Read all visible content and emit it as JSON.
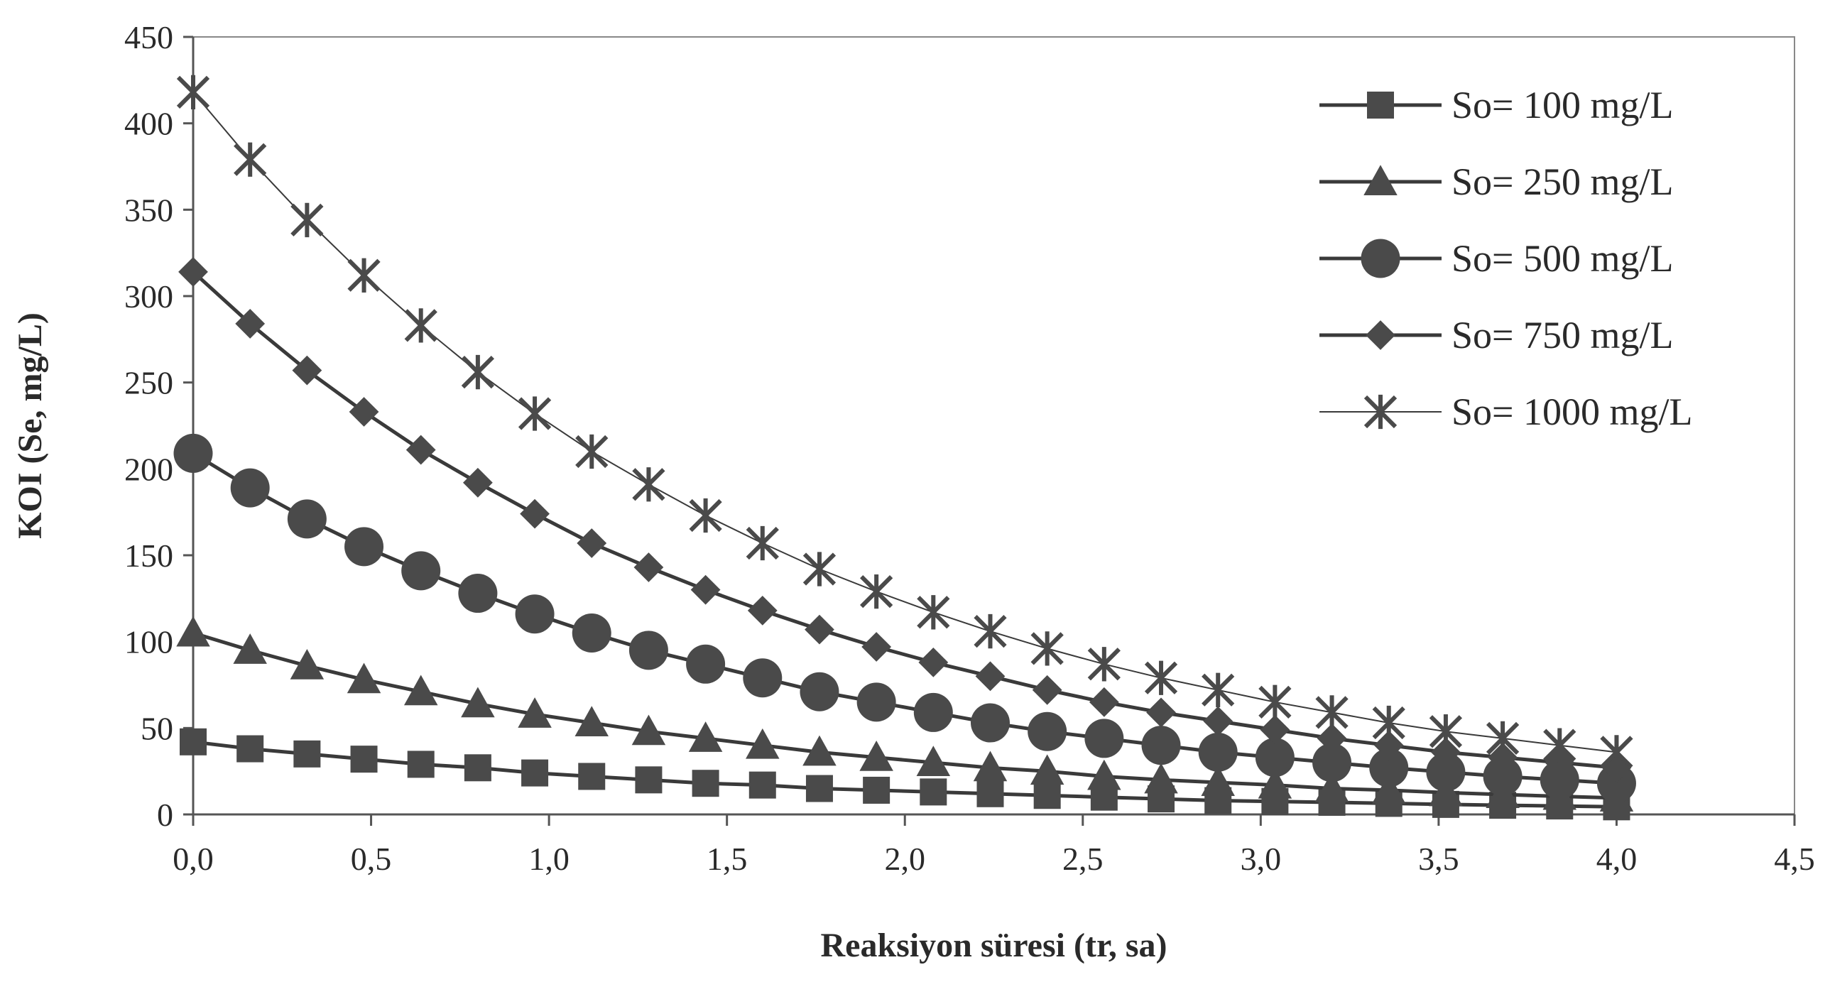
{
  "chart_data": {
    "type": "line",
    "title": "",
    "xlabel": "Reaksiyon süresi (tr, sa)",
    "ylabel": "KOI (Se, mg/L)",
    "xlim": [
      0,
      4.5
    ],
    "ylim": [
      0,
      450
    ],
    "x_ticks": [
      "0,0",
      "0,5",
      "1,0",
      "1,5",
      "2,0",
      "2,5",
      "3,0",
      "3,5",
      "4,0",
      "4,5"
    ],
    "y_ticks": [
      "0",
      "50",
      "100",
      "150",
      "200",
      "250",
      "300",
      "350",
      "400",
      "450"
    ],
    "grid": false,
    "legend_position": "top-right",
    "x": [
      0,
      0.16,
      0.32,
      0.48,
      0.64,
      0.8,
      0.96,
      1.12,
      1.28,
      1.44,
      1.6,
      1.76,
      1.92,
      2.08,
      2.24,
      2.4,
      2.56,
      2.72,
      2.88,
      3.04,
      3.2,
      3.36,
      3.52,
      3.68,
      3.84,
      4.0
    ],
    "series": [
      {
        "name": "So= 100 mg/L",
        "marker": "square",
        "values": [
          42,
          38,
          35,
          32,
          29,
          27,
          24,
          22,
          20,
          18,
          17,
          15,
          14,
          13,
          12,
          11,
          10,
          9,
          8,
          7.5,
          7,
          6.4,
          5.8,
          5.3,
          4.9,
          4.4
        ]
      },
      {
        "name": "So= 250 mg/L",
        "marker": "triangle",
        "values": [
          105,
          95,
          86,
          78,
          71,
          64,
          58,
          53,
          48,
          44,
          40,
          36,
          33,
          30,
          27,
          25,
          22,
          20,
          18.5,
          17,
          15,
          14,
          12.6,
          11.5,
          10.5,
          9.5
        ]
      },
      {
        "name": "So= 500 mg/L",
        "marker": "circle",
        "values": [
          209,
          189,
          171,
          155,
          141,
          128,
          116,
          105,
          95,
          87,
          79,
          71,
          65,
          59,
          53,
          48,
          44,
          40,
          36,
          33,
          30,
          27,
          24.5,
          22,
          20,
          18
        ]
      },
      {
        "name": "So= 750 mg/L",
        "marker": "diamond",
        "values": [
          314,
          284,
          257,
          233,
          211,
          192,
          174,
          157,
          143,
          130,
          118,
          107,
          97,
          88,
          80,
          72,
          65,
          59,
          54,
          49,
          44,
          40,
          36,
          33,
          30,
          27
        ]
      },
      {
        "name": "So= 1000 mg/L",
        "marker": "star",
        "values": [
          418,
          379,
          344,
          312,
          283,
          256,
          232,
          210,
          191,
          173,
          157,
          142,
          129,
          117,
          106,
          96,
          87,
          79,
          72,
          65,
          59,
          53,
          48,
          44,
          40,
          36
        ]
      }
    ]
  },
  "style": {
    "line_color": "#3a3a3a",
    "marker_color": "#4a4a4a",
    "axis_color": "#555555",
    "frame_color": "#888888",
    "text_color": "#2a2a2a"
  }
}
